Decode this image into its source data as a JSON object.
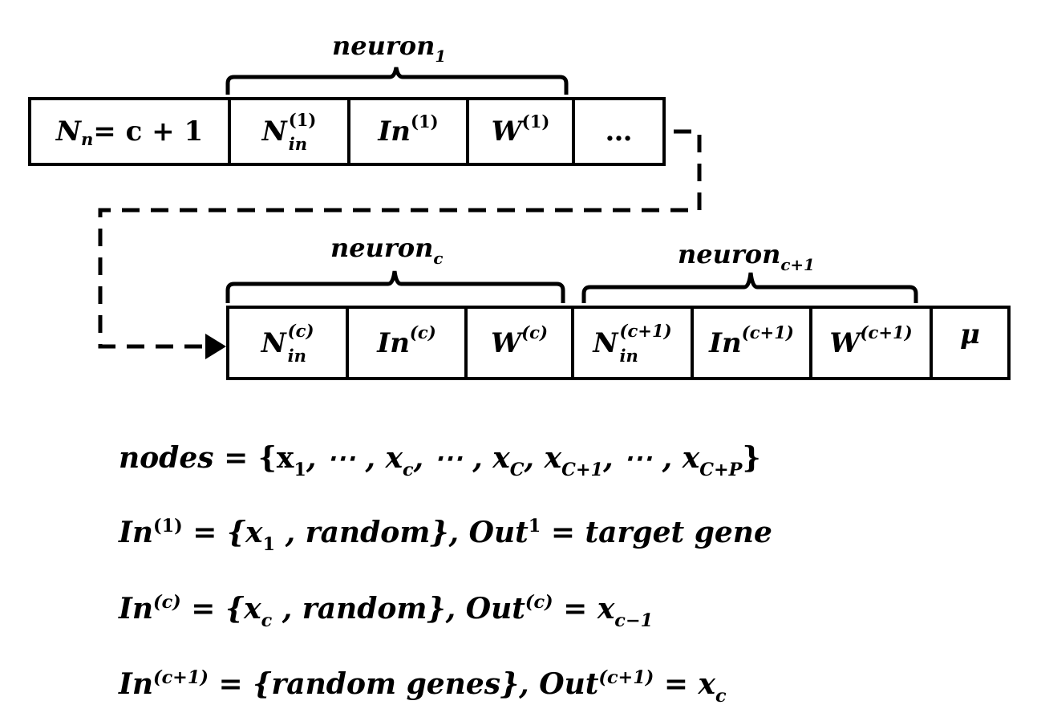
{
  "braces": {
    "neuron1": {
      "base": "neuron",
      "sub": "1"
    },
    "neuronc": {
      "base": "neuron",
      "sub": "c"
    },
    "neuroncp1": {
      "base": "neuron",
      "sub": "c+1"
    }
  },
  "row1": {
    "nn_lhs": "N",
    "nn_sub": "n",
    "nn_rhs": " = c + 1",
    "nin1_base": "N",
    "nin1_sup": "(1)",
    "nin1_sub": "in",
    "in1_base": "In",
    "in1_sup": "(1)",
    "w1_base": "W",
    "w1_sup": "(1)",
    "ellipsis": "…"
  },
  "row2": {
    "ninc_base": "N",
    "ninc_sup": "(c)",
    "ninc_sub": "in",
    "inc_base": "In",
    "inc_sup": "(c)",
    "wc_base": "W",
    "wc_sup": "(c)",
    "nincp1_base": "N",
    "nincp1_sup": "(c+1)",
    "nincp1_sub": "in",
    "incp1_base": "In",
    "incp1_sup": "(c+1)",
    "wcp1_base": "W",
    "wcp1_sup": "(c+1)",
    "mu": "μ"
  },
  "equations": {
    "eq1": {
      "lhs": "nodes",
      "p1": " = {x",
      "s1": "1",
      "p2": ", ⋯ , x",
      "s2": "c",
      "p3": ", ⋯ , x",
      "s3": "C",
      "p4": ", x",
      "s4": "C+1",
      "p5": ", ⋯ , x",
      "s5": "C+P",
      "p6": "}"
    },
    "eq2": {
      "base": "In",
      "sup": "(1)",
      "p1": " = {x",
      "s1": "1",
      "p2": " , random}, Out",
      "sup2": "1",
      "p3": " = target gene"
    },
    "eq3": {
      "base": "In",
      "sup": "(c)",
      "p1": " = {x",
      "s1": "c",
      "p2": " , random}, Out",
      "sup2": "(c)",
      "p3": " = x",
      "s3": "c−1"
    },
    "eq4": {
      "base": "In",
      "sup": "(c+1)",
      "p1": " = {random genes}, Out",
      "sup2": "(c+1)",
      "p2": " = x",
      "s2": "c"
    }
  }
}
